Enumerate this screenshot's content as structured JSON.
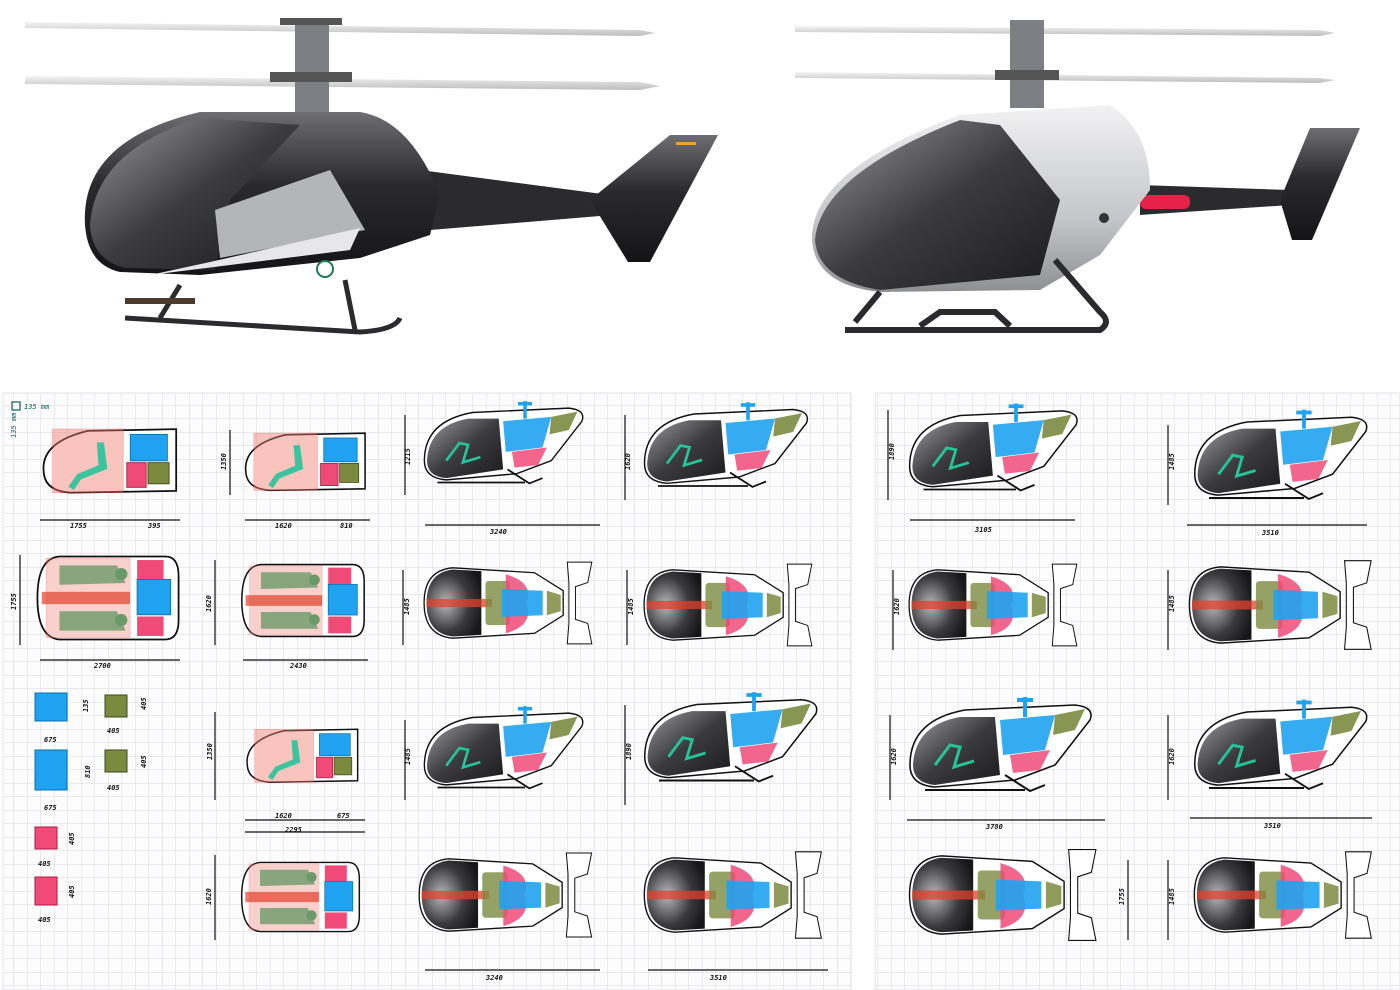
{
  "colors": {
    "body_dark": "#2b2b2e",
    "body_silver": "#c9cacc",
    "tail_light": "#e8214a",
    "accent_orange": "#f2a12b",
    "zone_blue": "#1fa3f0",
    "zone_pink": "#f04a78",
    "zone_olive": "#7c8a3f",
    "zone_red": "#f07d6e",
    "occupant_green": "#26c49a",
    "grid": "#d9d9de"
  },
  "scale_note": {
    "square": "135 mm",
    "side": "135 mm"
  },
  "left_sheet": {
    "row1": {
      "a_len": "1755",
      "a_nose": "395",
      "b_len": "1620",
      "b_nose": "810",
      "b_height": "1350",
      "c_len": "3240",
      "c_height": "1215",
      "d_height": "1620"
    },
    "row2": {
      "a_len": "2700",
      "a_width": "1755",
      "b_len": "2430",
      "b_width": "1620",
      "c_width": "1485",
      "d_width": "1485"
    },
    "legend": {
      "blue1_w": "675",
      "blue1_h": "135",
      "olive1_w": "405",
      "olive1_h": "405",
      "blue2_w": "675",
      "blue2_h": "810",
      "olive2_w": "405",
      "olive2_h": "405",
      "pink1_w": "405",
      "pink1_h": "405",
      "pink2_w": "405",
      "pink2_h": "405"
    },
    "row3": {
      "b_len": "1620",
      "b_nose": "675",
      "b_total": "2295",
      "b_height": "1350",
      "c_height": "1485",
      "d_height": "1890"
    },
    "row4": {
      "b_width": "1620",
      "c_len": "3240",
      "d_len": "3510"
    }
  },
  "right_sheet": {
    "row1": {
      "a_len": "3105",
      "a_height": "1890",
      "b_len": "3510",
      "b_height": "1485"
    },
    "row2": {
      "a_width": "1620",
      "b_width": "1485"
    },
    "row3": {
      "a_len": "3780",
      "a_height": "1620",
      "b_len": "3510",
      "b_height": "1620"
    },
    "row4": {
      "a_width": "1755",
      "b_width": "1485"
    }
  }
}
